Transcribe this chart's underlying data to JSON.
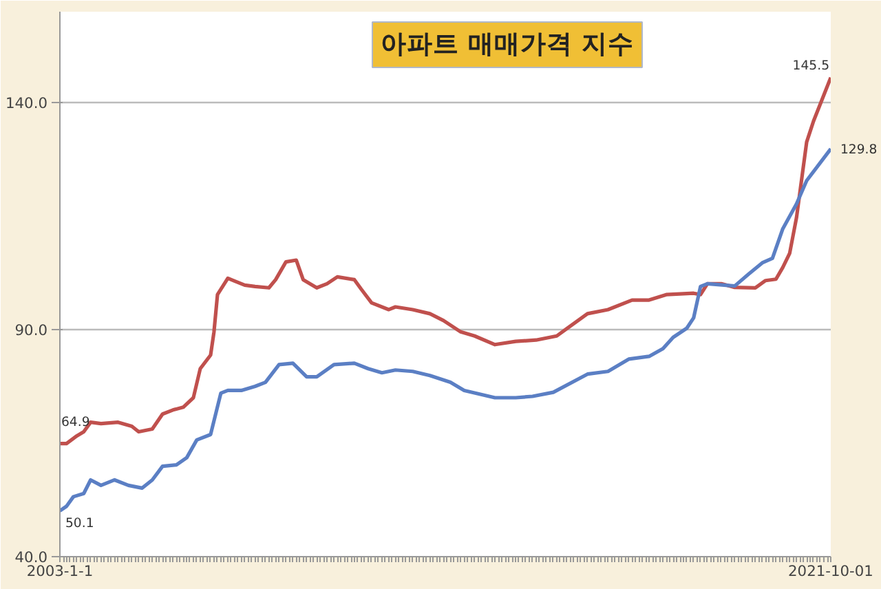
{
  "chart_data": {
    "type": "line",
    "title": "아파트 매매가격 지수",
    "xlim": [
      "2003-01",
      "2021-10"
    ],
    "xticks": [
      {
        "value": "2003-01",
        "label": "2003-1-1"
      },
      {
        "value": "2021-10",
        "label": "2021-10-01"
      }
    ],
    "ylim": [
      40,
      160
    ],
    "yticks": [
      {
        "value": 40,
        "label": "40.0"
      },
      {
        "value": 90,
        "label": "90.0"
      },
      {
        "value": 140,
        "label": "140.0"
      }
    ],
    "grid": "y",
    "marker": "none",
    "line_style": "solid",
    "series": [
      {
        "color": "#c0504d",
        "x": [
          "2003-01",
          "2003-03",
          "2003-06",
          "2003-08",
          "2003-10",
          "2004-01",
          "2004-06",
          "2004-10",
          "2004-12",
          "2005-04",
          "2005-07",
          "2005-10",
          "2006-01",
          "2006-04",
          "2006-06",
          "2006-09",
          "2006-10",
          "2006-11",
          "2007-02",
          "2007-04",
          "2007-07",
          "2007-10",
          "2008-02",
          "2008-04",
          "2008-07",
          "2008-10",
          "2008-12",
          "2009-04",
          "2009-07",
          "2009-10",
          "2010-03",
          "2010-05",
          "2010-08",
          "2011-01",
          "2011-03",
          "2011-08",
          "2012-01",
          "2012-05",
          "2012-10",
          "2013-02",
          "2013-08",
          "2014-02",
          "2014-08",
          "2015-02",
          "2015-05",
          "2015-11",
          "2016-05",
          "2016-12",
          "2017-05",
          "2017-10",
          "2018-06",
          "2018-08",
          "2018-10",
          "2019-02",
          "2019-06",
          "2019-12",
          "2020-03",
          "2020-06",
          "2020-08",
          "2020-10",
          "2020-12",
          "2021-03",
          "2021-05",
          "2021-10"
        ],
        "values": [
          64.9,
          64.9,
          66.6,
          67.5,
          69.6,
          69.3,
          69.6,
          68.7,
          67.5,
          68.1,
          71.4,
          72.3,
          72.9,
          75.0,
          81.4,
          84.4,
          89.5,
          97.7,
          101.3,
          100.7,
          99.8,
          99.5,
          99.2,
          101.0,
          104.9,
          105.3,
          101.0,
          99.2,
          100.1,
          101.6,
          101.0,
          98.9,
          95.9,
          94.4,
          95.0,
          94.4,
          93.5,
          92.0,
          89.5,
          88.6,
          86.7,
          87.4,
          87.7,
          88.6,
          90.2,
          93.5,
          94.4,
          96.5,
          96.5,
          97.7,
          98.0,
          97.7,
          100.1,
          100.1,
          99.3,
          99.2,
          100.8,
          101.1,
          103.7,
          106.8,
          114.7,
          131.3,
          135.9,
          145.5
        ]
      },
      {
        "color": "#5b7fc4",
        "x": [
          "2003-01",
          "2003-03",
          "2003-05",
          "2003-08",
          "2003-10",
          "2004-01",
          "2004-05",
          "2004-09",
          "2005-01",
          "2005-04",
          "2005-07",
          "2005-11",
          "2006-02",
          "2006-05",
          "2006-09",
          "2006-12",
          "2007-02",
          "2007-06",
          "2007-10",
          "2008-01",
          "2008-05",
          "2008-09",
          "2009-01",
          "2009-04",
          "2009-09",
          "2010-03",
          "2010-07",
          "2010-11",
          "2011-03",
          "2011-08",
          "2012-01",
          "2012-07",
          "2012-11",
          "2013-08",
          "2014-02",
          "2014-07",
          "2015-01",
          "2015-11",
          "2016-05",
          "2016-11",
          "2017-05",
          "2017-09",
          "2017-12",
          "2018-04",
          "2018-06",
          "2018-08",
          "2018-10",
          "2019-06",
          "2019-10",
          "2020-02",
          "2020-05",
          "2020-08",
          "2020-12",
          "2021-03",
          "2021-10"
        ],
        "values": [
          50.1,
          51.1,
          53.2,
          53.9,
          56.9,
          55.7,
          56.9,
          55.7,
          55.1,
          56.9,
          59.9,
          60.2,
          61.8,
          65.7,
          66.9,
          76.0,
          76.6,
          76.6,
          77.5,
          78.4,
          82.3,
          82.6,
          79.6,
          79.6,
          82.3,
          82.6,
          81.4,
          80.5,
          81.1,
          80.8,
          79.9,
          78.4,
          76.6,
          75.0,
          75.0,
          75.3,
          76.2,
          80.2,
          80.8,
          83.5,
          84.1,
          85.8,
          88.3,
          90.3,
          92.6,
          99.5,
          100.1,
          99.6,
          102.2,
          104.7,
          105.7,
          112.2,
          117.7,
          122.8,
          129.8
        ]
      }
    ],
    "annotations": [
      {
        "text": "64.9",
        "x": "2003-01",
        "y": 64.9
      },
      {
        "text": "50.1",
        "x": "2003-01",
        "y": 50.1
      },
      {
        "text": "145.5",
        "x": "2021-10",
        "y": 145.5
      },
      {
        "text": "129.8",
        "x": "2021-10",
        "y": 129.8
      }
    ]
  }
}
